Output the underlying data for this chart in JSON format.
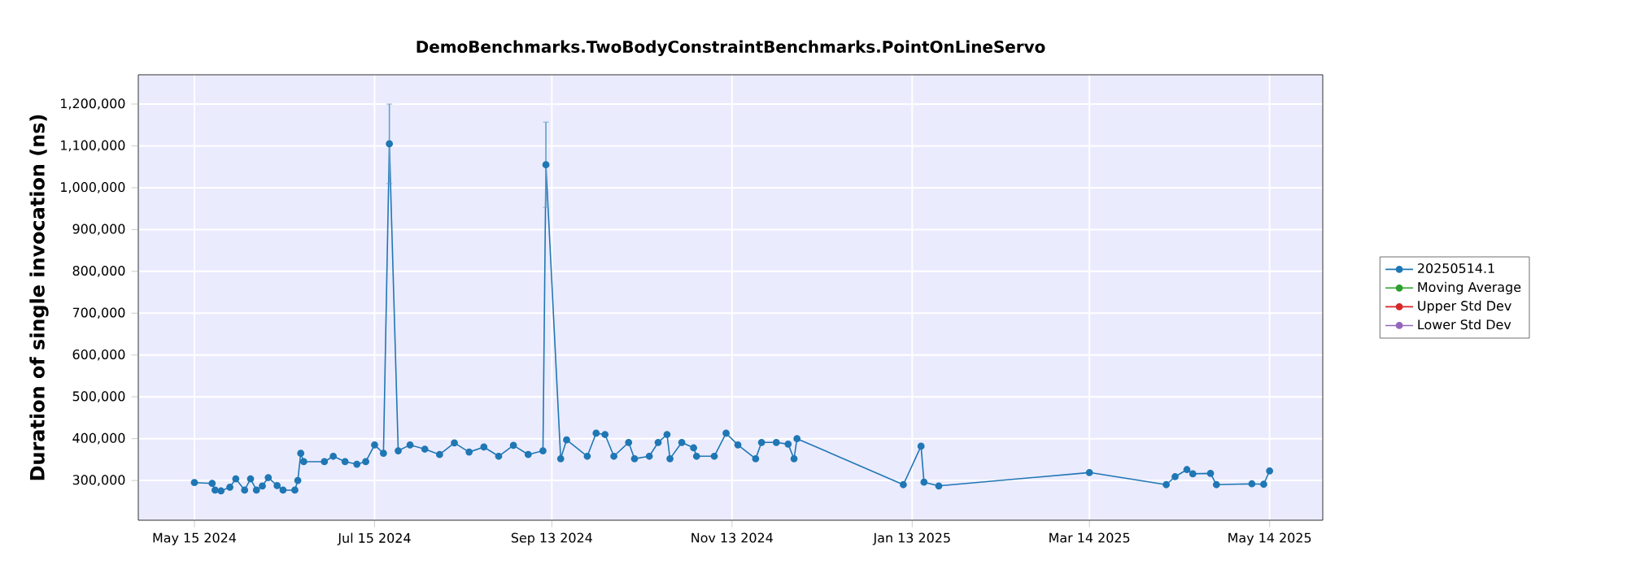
{
  "chart_data": {
    "type": "line",
    "title": "DemoBenchmarks.TwoBodyConstraintBenchmarks.PointOnLineServo",
    "ylabel": "Duration of single invocation (ns)",
    "series": [
      {
        "name": "20250514.1",
        "color": "#1f77b4",
        "x": [
          "2024-05-15",
          "2024-05-21",
          "2024-05-22",
          "2024-05-24",
          "2024-05-27",
          "2024-05-29",
          "2024-06-01",
          "2024-06-03",
          "2024-06-05",
          "2024-06-07",
          "2024-06-09",
          "2024-06-12",
          "2024-06-14",
          "2024-06-18",
          "2024-06-19",
          "2024-06-20",
          "2024-06-21",
          "2024-06-28",
          "2024-07-01",
          "2024-07-05",
          "2024-07-09",
          "2024-07-12",
          "2024-07-15",
          "2024-07-18",
          "2024-07-20",
          "2024-07-23",
          "2024-07-27",
          "2024-08-01",
          "2024-08-06",
          "2024-08-11",
          "2024-08-16",
          "2024-08-21",
          "2024-08-26",
          "2024-08-31",
          "2024-09-05",
          "2024-09-10",
          "2024-09-11",
          "2024-09-16",
          "2024-09-18",
          "2024-09-25",
          "2024-09-28",
          "2024-10-01",
          "2024-10-04",
          "2024-10-09",
          "2024-10-11",
          "2024-10-16",
          "2024-10-19",
          "2024-10-22",
          "2024-10-23",
          "2024-10-27",
          "2024-10-31",
          "2024-11-01",
          "2024-11-07",
          "2024-11-11",
          "2024-11-15",
          "2024-11-21",
          "2024-11-23",
          "2024-11-28",
          "2024-12-02",
          "2024-12-04",
          "2024-12-05",
          "2025-01-10",
          "2025-01-16",
          "2025-01-17",
          "2025-01-22",
          "2025-03-14",
          "2025-04-09",
          "2025-04-12",
          "2025-04-16",
          "2025-04-18",
          "2025-04-24",
          "2025-04-26",
          "2025-05-08",
          "2025-05-12",
          "2025-05-14"
        ],
        "values": [
          295000,
          293000,
          277000,
          275000,
          284000,
          304000,
          277000,
          304000,
          277000,
          287000,
          307000,
          288000,
          277000,
          277000,
          300000,
          365000,
          345000,
          345000,
          358000,
          345000,
          339000,
          345000,
          385000,
          365000,
          1105000,
          371000,
          385000,
          375000,
          362000,
          390000,
          368000,
          380000,
          358000,
          384000,
          362000,
          371000,
          1055000,
          352000,
          397000,
          358000,
          413000,
          410000,
          358000,
          391000,
          352000,
          358000,
          391000,
          410000,
          352000,
          391000,
          378000,
          358000,
          358000,
          413000,
          385000,
          352000,
          391000,
          391000,
          387000,
          352000,
          400000,
          290000,
          382000,
          296000,
          287000,
          319000,
          290000,
          309000,
          326000,
          316000,
          317000,
          290000,
          292000,
          291000,
          323000
        ],
        "errors": [
          null,
          null,
          null,
          null,
          null,
          null,
          null,
          null,
          null,
          null,
          null,
          null,
          null,
          null,
          null,
          null,
          null,
          null,
          null,
          null,
          null,
          null,
          null,
          null,
          95000,
          null,
          null,
          null,
          null,
          null,
          null,
          null,
          null,
          null,
          null,
          null,
          102000,
          null,
          null,
          null,
          null,
          null,
          null,
          null,
          null,
          null,
          null,
          null,
          null,
          null,
          null,
          null,
          null,
          null,
          null,
          null,
          null,
          null,
          null,
          null,
          null,
          null,
          null,
          null,
          null,
          null,
          null,
          null,
          null,
          null,
          null,
          null,
          null,
          null,
          null
        ]
      },
      {
        "name": "Moving Average",
        "color": "#2ca02c"
      },
      {
        "name": "Upper Std Dev",
        "color": "#d62728"
      },
      {
        "name": "Lower Std Dev",
        "color": "#9467bd"
      }
    ],
    "xlim": [
      "2024-04-26",
      "2025-06-01"
    ],
    "xticks": [
      {
        "value": "2024-05-15",
        "label": "May 15 2024"
      },
      {
        "value": "2024-07-15",
        "label": "Jul 15 2024"
      },
      {
        "value": "2024-09-13",
        "label": "Sep 13 2024"
      },
      {
        "value": "2024-11-13",
        "label": "Nov 13 2024"
      },
      {
        "value": "2025-01-13",
        "label": "Jan 13 2025"
      },
      {
        "value": "2025-03-14",
        "label": "Mar 14 2025"
      },
      {
        "value": "2025-05-14",
        "label": "May 14 2025"
      }
    ],
    "ylim": [
      205000,
      1270000
    ],
    "yticks": [
      {
        "value": 300000,
        "label": "300,000"
      },
      {
        "value": 400000,
        "label": "400,000"
      },
      {
        "value": 500000,
        "label": "500,000"
      },
      {
        "value": 600000,
        "label": "600,000"
      },
      {
        "value": 700000,
        "label": "700,000"
      },
      {
        "value": 800000,
        "label": "800,000"
      },
      {
        "value": 900000,
        "label": "900,000"
      },
      {
        "value": 1000000,
        "label": "1,000,000"
      },
      {
        "value": 1100000,
        "label": "1,100,000"
      },
      {
        "value": 1200000,
        "label": "1,200,000"
      }
    ],
    "grid": true,
    "legend": "right",
    "marker": "circle",
    "line_style": "solid"
  }
}
